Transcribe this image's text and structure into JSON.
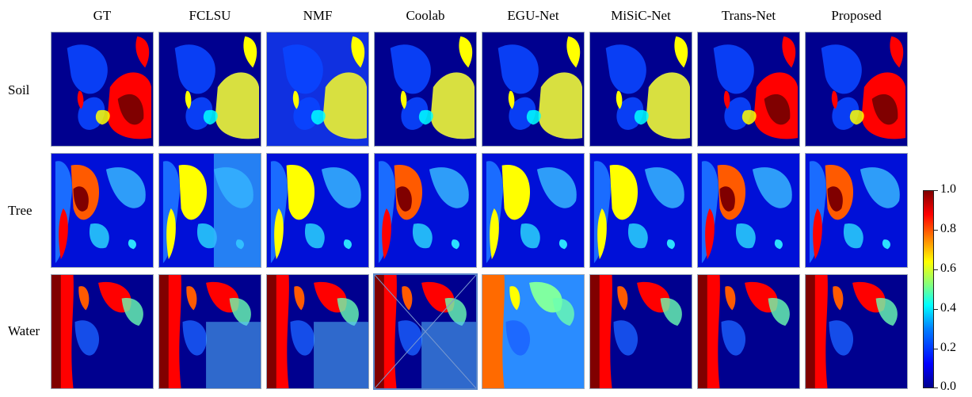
{
  "columns": [
    "GT",
    "FCLSU",
    "NMF",
    "Coolab",
    "EGU-Net",
    "MiSiC-Net",
    "Trans-Net",
    "Proposed"
  ],
  "rows": [
    "Soil",
    "Tree",
    "Water"
  ],
  "colorbar": {
    "ticks": [
      "1.0",
      "0.8",
      "0.6",
      "0.4",
      "0.2",
      "0.0"
    ],
    "colormap": "jet"
  },
  "overlay_tag": "",
  "colors": {
    "dark_blue": "#00008f",
    "blue": "#0000ff",
    "cyan": "#00ffff",
    "yellow": "#ffff00",
    "red": "#ff0000",
    "dark_red": "#800000"
  }
}
